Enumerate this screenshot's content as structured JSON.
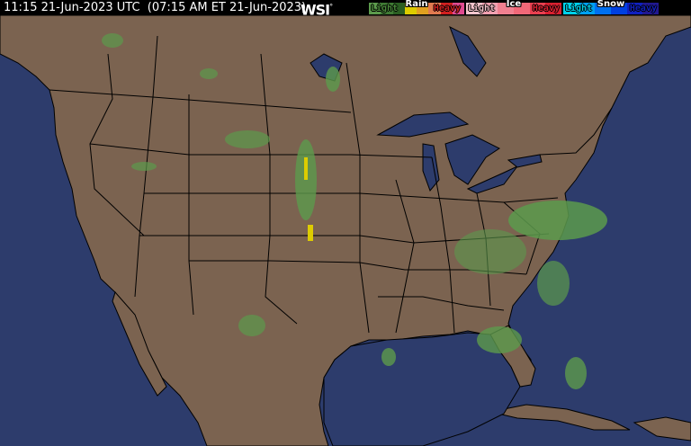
{
  "header": {
    "timestamp": "11:15 21-Jun-2023 UTC  (07:15 AM ET 21-Jun-2023)",
    "logo": "WSI",
    "logo_mark": "°"
  },
  "legend": [
    {
      "title": "Rain",
      "light": "Light",
      "heavy": "Heavy",
      "colors": [
        "#5c9a4c",
        "#3f7a34",
        "#2a5e22",
        "#ddcc00",
        "#e0a020",
        "#e07a50",
        "#d02020",
        "#e04a90"
      ]
    },
    {
      "title": "Ice",
      "light": "Light",
      "heavy": "Heavy",
      "colors": [
        "#f4c4cc",
        "#f0a0b0",
        "#f08090",
        "#f06878",
        "#e84050",
        "#d82030"
      ]
    },
    {
      "title": "Snow",
      "light": "Light",
      "heavy": "Heavy",
      "colors": [
        "#00d0e8",
        "#00a0f0",
        "#0070f0",
        "#0040e0",
        "#1020c0",
        "#201890"
      ]
    }
  ],
  "colors": {
    "ocean": "#2d3c6c",
    "land": "#7b6350",
    "borders": "#000000",
    "precip_light": "#5c9a4c"
  }
}
